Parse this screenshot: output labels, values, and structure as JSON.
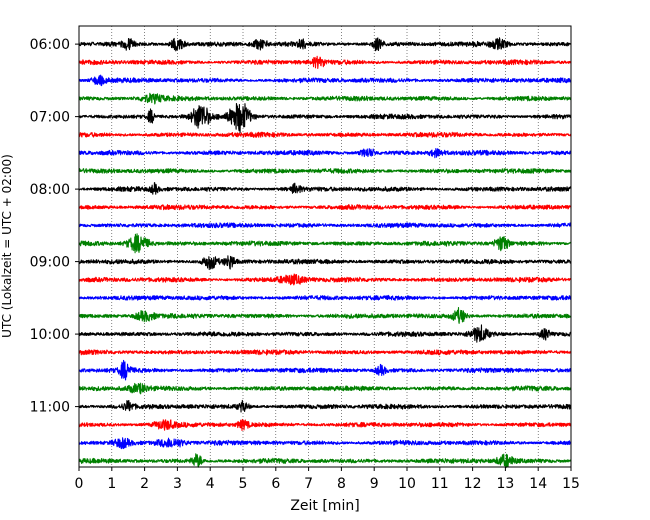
{
  "chart_data": {
    "type": "line",
    "title": "",
    "xlabel": "Zeit  [min]",
    "ylabel": "UTC (Lokalzeit = UTC + 02:00)",
    "xlim": [
      0,
      15
    ],
    "x_ticks": [
      0,
      1,
      2,
      3,
      4,
      5,
      6,
      7,
      8,
      9,
      10,
      11,
      12,
      13,
      14,
      15
    ],
    "x_tick_labels": [
      "0",
      "1",
      "2",
      "3",
      "4",
      "5",
      "6",
      "7",
      "8",
      "9",
      "10",
      "11",
      "12",
      "13",
      "14",
      "15"
    ],
    "y_tick_labels": [
      "06:00",
      "07:00",
      "08:00",
      "09:00",
      "10:00",
      "11:00"
    ],
    "ylim_minutes_utc": [
      345,
      710
    ],
    "grid": "vertical dotted lines at each minute",
    "line_colors": [
      "#000000",
      "#ff0000",
      "#0000ff",
      "#008000"
    ],
    "trace_start_minutes_utc": [
      360,
      375,
      390,
      405,
      420,
      435,
      450,
      465,
      480,
      495,
      510,
      525,
      540,
      555,
      570,
      585,
      600,
      615,
      630,
      645,
      660,
      675,
      690,
      705
    ],
    "trace_amplitude": 1.0,
    "events": [
      {
        "trace": 0,
        "x": 1.5,
        "amp": 2.3,
        "w": 0.15
      },
      {
        "trace": 0,
        "x": 3.0,
        "amp": 3.0,
        "w": 0.2
      },
      {
        "trace": 0,
        "x": 5.5,
        "amp": 2.0,
        "w": 0.2
      },
      {
        "trace": 0,
        "x": 6.8,
        "amp": 2.6,
        "w": 0.1
      },
      {
        "trace": 0,
        "x": 9.1,
        "amp": 2.6,
        "w": 0.15
      },
      {
        "trace": 0,
        "x": 12.8,
        "amp": 2.0,
        "w": 0.25
      },
      {
        "trace": 1,
        "x": 7.3,
        "amp": 2.0,
        "w": 0.2
      },
      {
        "trace": 2,
        "x": 0.6,
        "amp": 1.8,
        "w": 0.2
      },
      {
        "trace": 3,
        "x": 2.2,
        "amp": 1.6,
        "w": 0.3
      },
      {
        "trace": 4,
        "x": 2.2,
        "amp": 3.0,
        "w": 0.1
      },
      {
        "trace": 4,
        "x": 3.7,
        "amp": 5.5,
        "w": 0.25
      },
      {
        "trace": 4,
        "x": 4.9,
        "amp": 6.5,
        "w": 0.3
      },
      {
        "trace": 6,
        "x": 8.8,
        "amp": 2.0,
        "w": 0.2
      },
      {
        "trace": 6,
        "x": 10.9,
        "amp": 1.6,
        "w": 0.2
      },
      {
        "trace": 8,
        "x": 2.3,
        "amp": 2.0,
        "w": 0.1
      },
      {
        "trace": 8,
        "x": 6.6,
        "amp": 2.2,
        "w": 0.12
      },
      {
        "trace": 11,
        "x": 1.8,
        "amp": 4.0,
        "w": 0.3
      },
      {
        "trace": 11,
        "x": 12.9,
        "amp": 3.5,
        "w": 0.2
      },
      {
        "trace": 12,
        "x": 4.0,
        "amp": 3.2,
        "w": 0.2
      },
      {
        "trace": 12,
        "x": 4.6,
        "amp": 3.0,
        "w": 0.15
      },
      {
        "trace": 13,
        "x": 6.5,
        "amp": 1.8,
        "w": 0.4
      },
      {
        "trace": 15,
        "x": 2.0,
        "amp": 2.0,
        "w": 0.3
      },
      {
        "trace": 15,
        "x": 11.6,
        "amp": 3.0,
        "w": 0.2
      },
      {
        "trace": 16,
        "x": 12.2,
        "amp": 3.5,
        "w": 0.25
      },
      {
        "trace": 16,
        "x": 14.2,
        "amp": 2.6,
        "w": 0.15
      },
      {
        "trace": 18,
        "x": 1.4,
        "amp": 3.8,
        "w": 0.15
      },
      {
        "trace": 18,
        "x": 9.2,
        "amp": 2.0,
        "w": 0.15
      },
      {
        "trace": 19,
        "x": 1.8,
        "amp": 1.8,
        "w": 0.3
      },
      {
        "trace": 20,
        "x": 1.5,
        "amp": 2.0,
        "w": 0.15
      },
      {
        "trace": 20,
        "x": 5.0,
        "amp": 2.0,
        "w": 0.15
      },
      {
        "trace": 21,
        "x": 2.6,
        "amp": 1.8,
        "w": 0.3
      },
      {
        "trace": 21,
        "x": 5.0,
        "amp": 2.0,
        "w": 0.15
      },
      {
        "trace": 22,
        "x": 1.3,
        "amp": 2.0,
        "w": 0.25
      },
      {
        "trace": 22,
        "x": 2.8,
        "amp": 2.0,
        "w": 0.4
      },
      {
        "trace": 23,
        "x": 3.6,
        "amp": 2.8,
        "w": 0.15
      },
      {
        "trace": 23,
        "x": 13.0,
        "amp": 2.6,
        "w": 0.25
      }
    ]
  }
}
